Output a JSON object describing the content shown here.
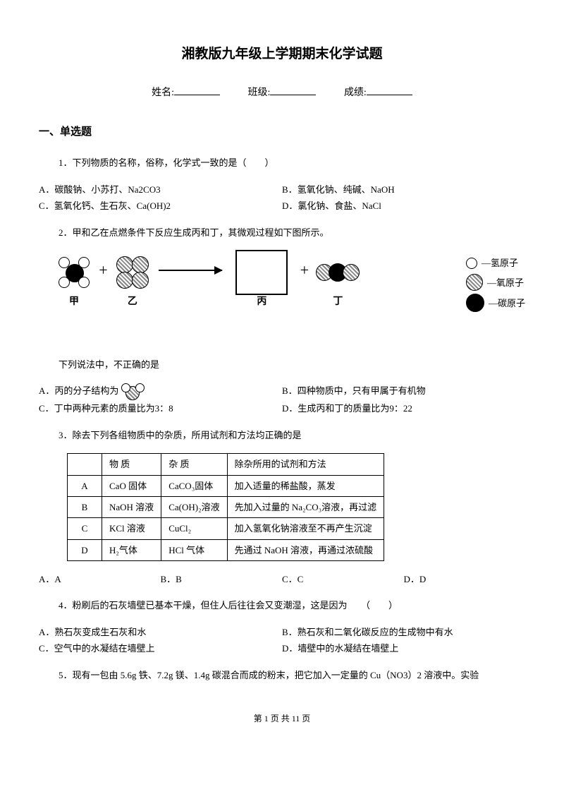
{
  "title": "湘教版九年级上学期期末化学试题",
  "fields": {
    "name": "姓名:",
    "class": "班级:",
    "score": "成绩:"
  },
  "section1": "一、单选题",
  "q1": {
    "stem": "1．下列物质的名称，俗称，化学式一致的是（　　）",
    "A": "A．碳酸钠、小苏打、Na2CO3",
    "B": "B．氢氧化钠、纯碱、NaOH",
    "C": "C．氢氧化钙、生石灰、Ca(OH)2",
    "D": "D．氯化钠、食盐、NaCl"
  },
  "q2": {
    "stem": "2．甲和乙在点燃条件下反应生成丙和丁，其微观过程如下图所示。",
    "legend": {
      "h": "—氢原子",
      "o": "—氧原子",
      "c": "—碳原子"
    },
    "labels": {
      "jia": "甲",
      "yi": "乙",
      "bing": "丙",
      "ding": "丁"
    },
    "after": "下列说法中，不正确的是",
    "A": "A．丙的分子结构为",
    "B": "B．四种物质中，只有甲属于有机物",
    "C": "C．丁中两种元素的质量比为3：8",
    "D": "D．生成丙和丁的质量比为9：22"
  },
  "q3": {
    "stem": "3．除去下列各组物质中的杂质，所用试剂和方法均正确的是",
    "headers": [
      "",
      "物 质",
      "杂 质",
      "除杂所用的试剂和方法"
    ],
    "rows": [
      [
        "A",
        "CaO 固体",
        "CaCO₃固体",
        "加入适量的稀盐酸，蒸发"
      ],
      [
        "B",
        "NaOH 溶液",
        "Ca(OH)₂溶液",
        "先加入过量的 Na₂CO₃溶液，再过滤"
      ],
      [
        "C",
        "KCl 溶液",
        "CuCl₂",
        "加入氢氧化钠溶液至不再产生沉淀"
      ],
      [
        "D",
        "H₂气体",
        "HCl 气体",
        "先通过 NaOH 溶液，再通过浓硫酸"
      ]
    ],
    "opts": {
      "A": "A．A",
      "B": "B．B",
      "C": "C．C",
      "D": "D．D"
    }
  },
  "q4": {
    "stem": "4．粉刷后的石灰墙壁已基本干燥，但住人后往往会又变潮湿，这是因为　　（　　）",
    "A": "A．熟石灰变成生石灰和水",
    "B": "B．熟石灰和二氧化碳反应的生成物中有水",
    "C": "C．空气中的水凝结在墙壁上",
    "D": "D．墙壁中的水凝结在墙壁上"
  },
  "q5": {
    "stem": "5．现有一包由 5.6g 铁、7.2g 镁、1.4g 碳混合而成的粉末，把它加入一定量的 Cu（NO3）2 溶液中。实验"
  },
  "footer": "第 1 页 共 11 页"
}
